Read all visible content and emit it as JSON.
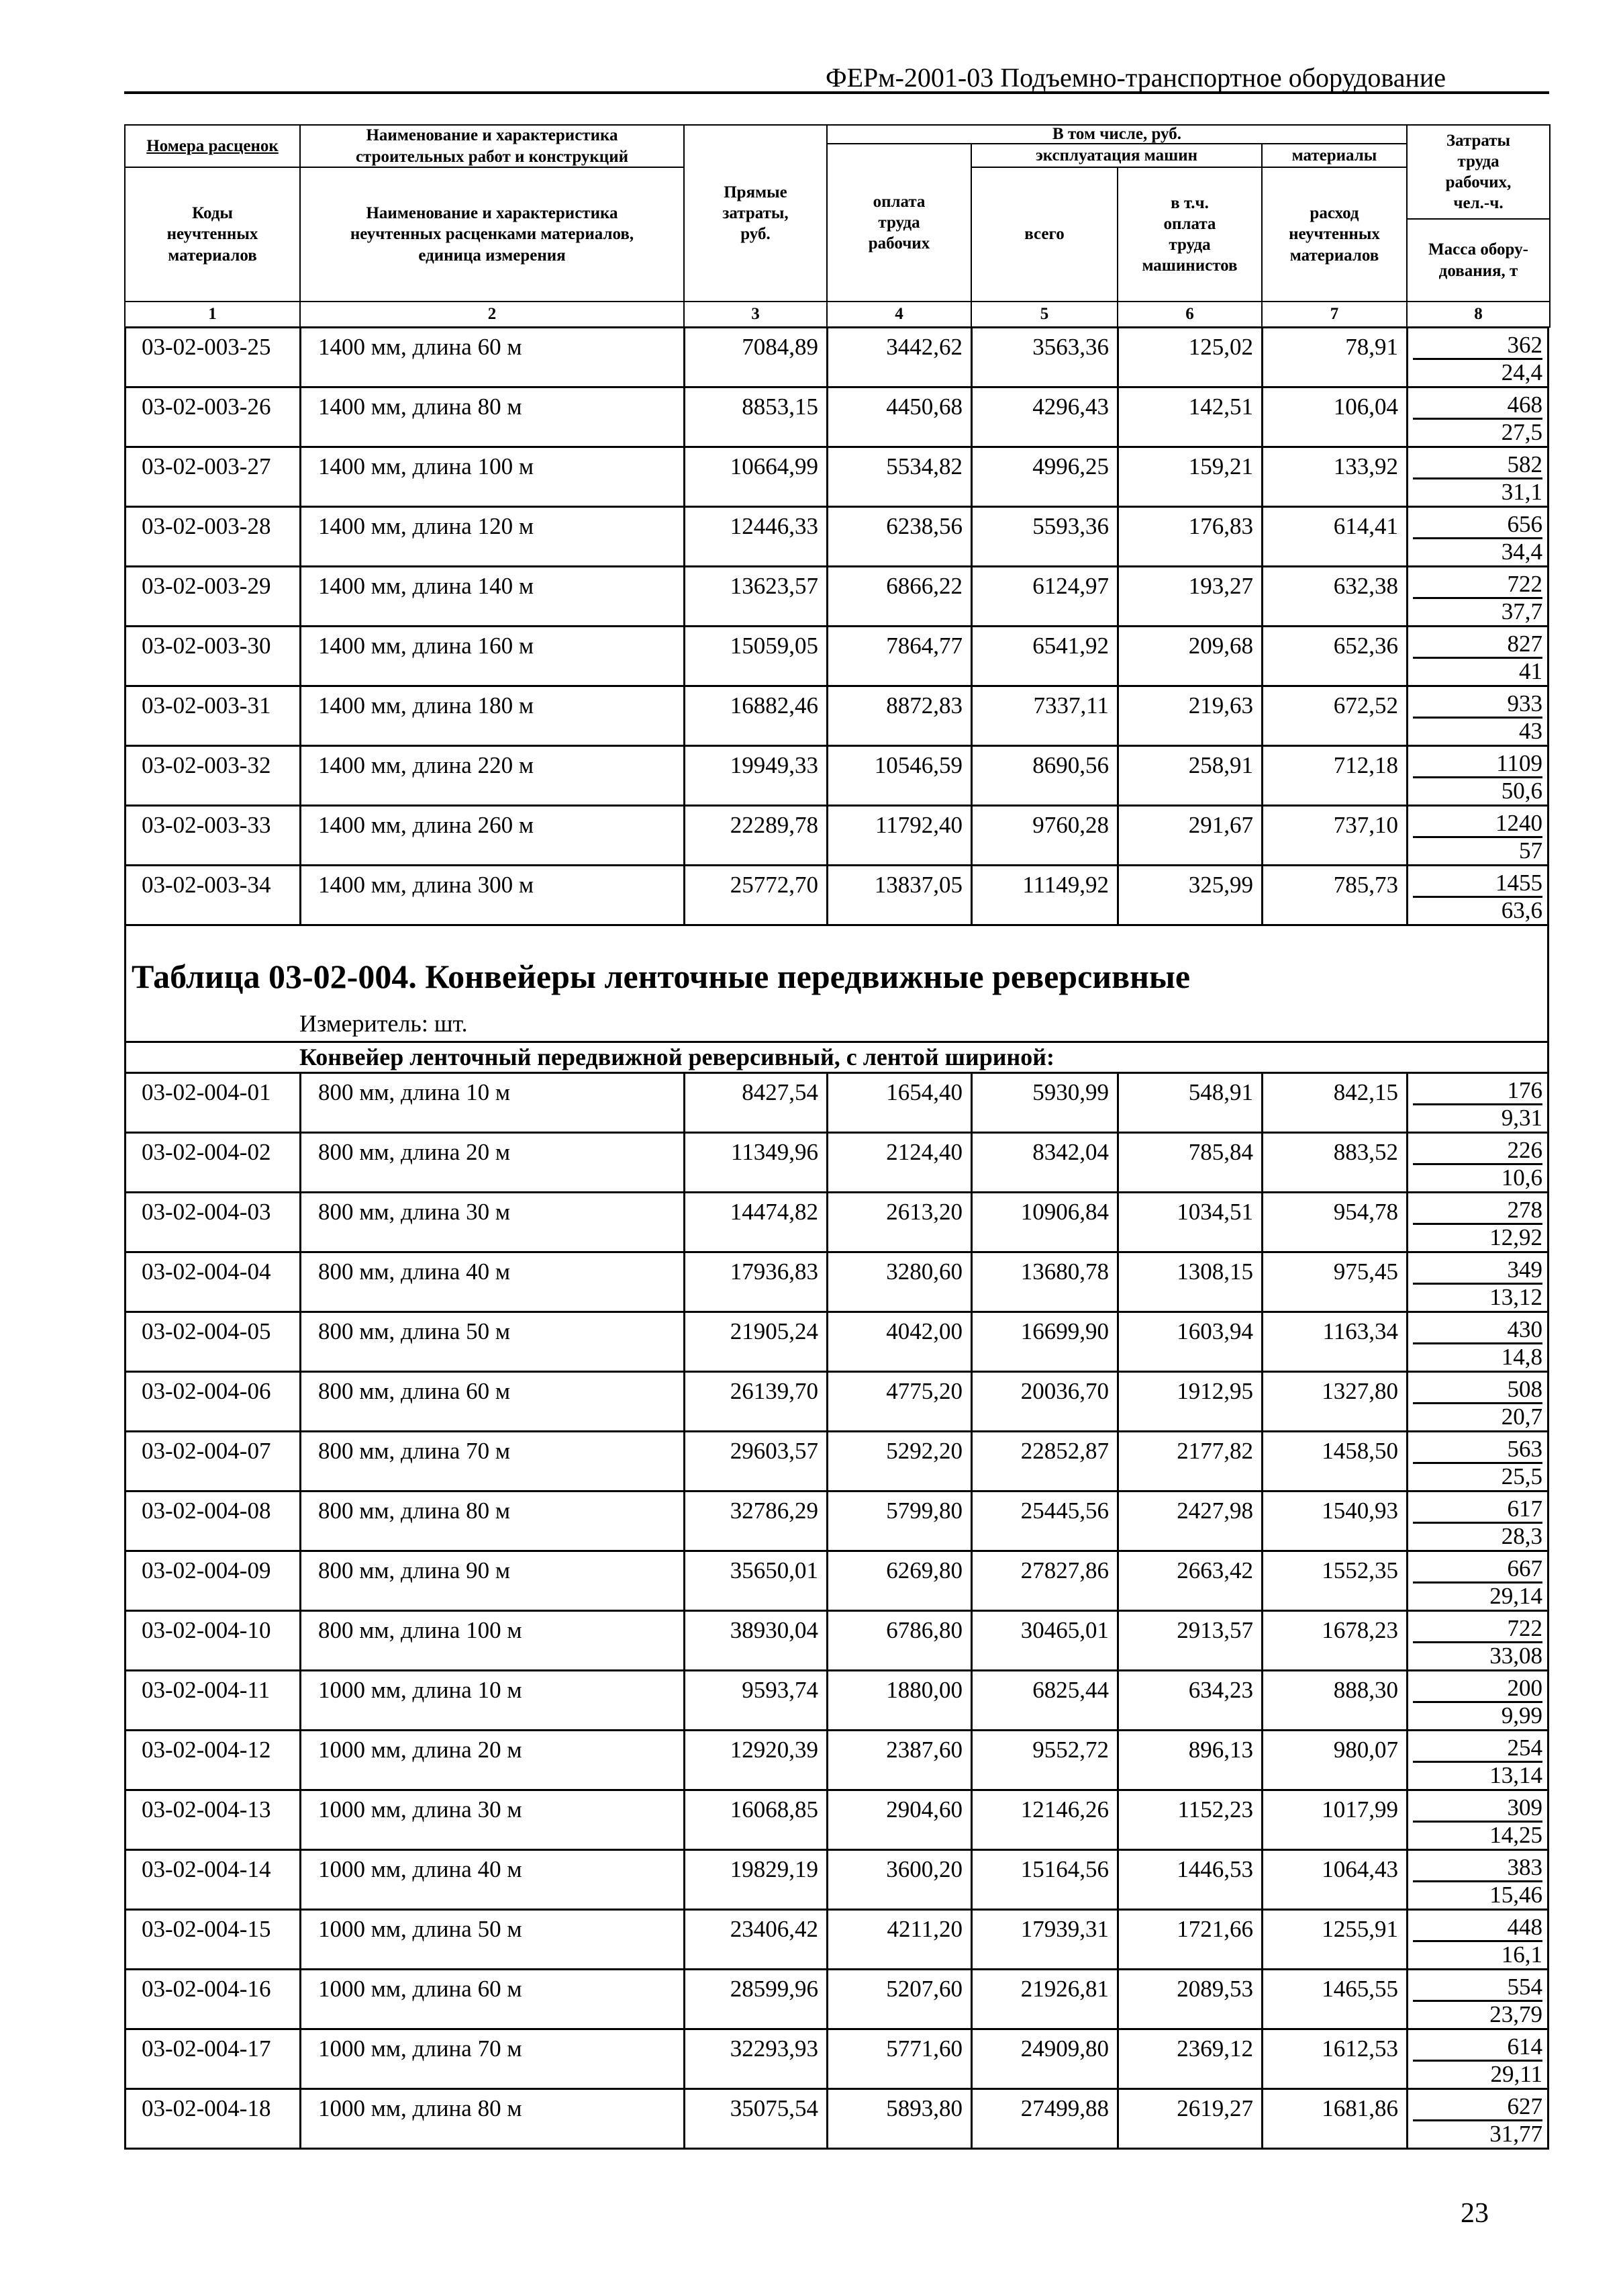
{
  "header": {
    "title": "ФЕРм-2001-03 Подъемно-транспортное оборудование"
  },
  "columns": {
    "c1_top": "Номера расценок",
    "c1_bottom": [
      "Коды",
      "неучтенных",
      "материалов"
    ],
    "c2_top": [
      "Наименование и характеристика",
      "строительных работ и конструкций"
    ],
    "c2_bottom": [
      "Наименование и характеристика",
      "неучтенных расценками материалов,",
      "единица измерения"
    ],
    "c3": [
      "Прямые",
      "затраты,",
      "руб."
    ],
    "incl": "В том числе, руб.",
    "c4": [
      "оплата",
      "труда",
      "рабочих"
    ],
    "machines": "эксплуатация машин",
    "c5": "всего",
    "c6": [
      "в т.ч.",
      "оплата",
      "труда",
      "машинистов"
    ],
    "materials": "материалы",
    "c7": [
      "расход",
      "неучтенных",
      "материалов"
    ],
    "c8_top": [
      "Затраты",
      "труда",
      "рабочих,",
      "чел.-ч."
    ],
    "c8_bottom": [
      "Масса обору-",
      "дования, т"
    ],
    "numbers": [
      "1",
      "2",
      "3",
      "4",
      "5",
      "6",
      "7",
      "8"
    ]
  },
  "table1": {
    "rows": [
      [
        "03-02-003-25",
        "1400 мм, длина 60 м",
        "7084,89",
        "3442,62",
        "3563,36",
        "125,02",
        "78,91",
        "362",
        "24,4"
      ],
      [
        "03-02-003-26",
        "1400 мм, длина 80 м",
        "8853,15",
        "4450,68",
        "4296,43",
        "142,51",
        "106,04",
        "468",
        "27,5"
      ],
      [
        "03-02-003-27",
        "1400 мм, длина 100 м",
        "10664,99",
        "5534,82",
        "4996,25",
        "159,21",
        "133,92",
        "582",
        "31,1"
      ],
      [
        "03-02-003-28",
        "1400 мм, длина 120 м",
        "12446,33",
        "6238,56",
        "5593,36",
        "176,83",
        "614,41",
        "656",
        "34,4"
      ],
      [
        "03-02-003-29",
        "1400 мм, длина 140 м",
        "13623,57",
        "6866,22",
        "6124,97",
        "193,27",
        "632,38",
        "722",
        "37,7"
      ],
      [
        "03-02-003-30",
        "1400 мм, длина 160 м",
        "15059,05",
        "7864,77",
        "6541,92",
        "209,68",
        "652,36",
        "827",
        "41"
      ],
      [
        "03-02-003-31",
        "1400 мм, длина 180 м",
        "16882,46",
        "8872,83",
        "7337,11",
        "219,63",
        "672,52",
        "933",
        "43"
      ],
      [
        "03-02-003-32",
        "1400 мм, длина 220 м",
        "19949,33",
        "10546,59",
        "8690,56",
        "258,91",
        "712,18",
        "1109",
        "50,6"
      ],
      [
        "03-02-003-33",
        "1400 мм, длина 260 м",
        "22289,78",
        "11792,40",
        "9760,28",
        "291,67",
        "737,10",
        "1240",
        "57"
      ],
      [
        "03-02-003-34",
        "1400 мм, длина 300 м",
        "25772,70",
        "13837,05",
        "11149,92",
        "325,99",
        "785,73",
        "1455",
        "63,6"
      ]
    ]
  },
  "table2": {
    "heading": "Таблица 03-02-004. Конвейеры ленточные передвижные реверсивные",
    "unit": "Измеритель: шт.",
    "group": "Конвейер ленточный передвижной реверсивный, с лентой шириной:",
    "rows": [
      [
        "03-02-004-01",
        "800 мм, длина 10 м",
        "8427,54",
        "1654,40",
        "5930,99",
        "548,91",
        "842,15",
        "176",
        "9,31"
      ],
      [
        "03-02-004-02",
        "800 мм, длина 20 м",
        "11349,96",
        "2124,40",
        "8342,04",
        "785,84",
        "883,52",
        "226",
        "10,6"
      ],
      [
        "03-02-004-03",
        "800 мм, длина 30 м",
        "14474,82",
        "2613,20",
        "10906,84",
        "1034,51",
        "954,78",
        "278",
        "12,92"
      ],
      [
        "03-02-004-04",
        "800 мм, длина 40 м",
        "17936,83",
        "3280,60",
        "13680,78",
        "1308,15",
        "975,45",
        "349",
        "13,12"
      ],
      [
        "03-02-004-05",
        "800 мм, длина 50 м",
        "21905,24",
        "4042,00",
        "16699,90",
        "1603,94",
        "1163,34",
        "430",
        "14,8"
      ],
      [
        "03-02-004-06",
        "800 мм, длина 60 м",
        "26139,70",
        "4775,20",
        "20036,70",
        "1912,95",
        "1327,80",
        "508",
        "20,7"
      ],
      [
        "03-02-004-07",
        "800 мм, длина 70 м",
        "29603,57",
        "5292,20",
        "22852,87",
        "2177,82",
        "1458,50",
        "563",
        "25,5"
      ],
      [
        "03-02-004-08",
        "800 мм, длина 80 м",
        "32786,29",
        "5799,80",
        "25445,56",
        "2427,98",
        "1540,93",
        "617",
        "28,3"
      ],
      [
        "03-02-004-09",
        "800 мм, длина 90 м",
        "35650,01",
        "6269,80",
        "27827,86",
        "2663,42",
        "1552,35",
        "667",
        "29,14"
      ],
      [
        "03-02-004-10",
        "800 мм, длина 100 м",
        "38930,04",
        "6786,80",
        "30465,01",
        "2913,57",
        "1678,23",
        "722",
        "33,08"
      ],
      [
        "03-02-004-11",
        "1000 мм, длина 10 м",
        "9593,74",
        "1880,00",
        "6825,44",
        "634,23",
        "888,30",
        "200",
        "9,99"
      ],
      [
        "03-02-004-12",
        "1000 мм, длина 20 м",
        "12920,39",
        "2387,60",
        "9552,72",
        "896,13",
        "980,07",
        "254",
        "13,14"
      ],
      [
        "03-02-004-13",
        "1000 мм, длина 30 м",
        "16068,85",
        "2904,60",
        "12146,26",
        "1152,23",
        "1017,99",
        "309",
        "14,25"
      ],
      [
        "03-02-004-14",
        "1000 мм, длина 40 м",
        "19829,19",
        "3600,20",
        "15164,56",
        "1446,53",
        "1064,43",
        "383",
        "15,46"
      ],
      [
        "03-02-004-15",
        "1000 мм, длина 50 м",
        "23406,42",
        "4211,20",
        "17939,31",
        "1721,66",
        "1255,91",
        "448",
        "16,1"
      ],
      [
        "03-02-004-16",
        "1000 мм, длина 60 м",
        "28599,96",
        "5207,60",
        "21926,81",
        "2089,53",
        "1465,55",
        "554",
        "23,79"
      ],
      [
        "03-02-004-17",
        "1000 мм, длина 70 м",
        "32293,93",
        "5771,60",
        "24909,80",
        "2369,12",
        "1612,53",
        "614",
        "29,11"
      ],
      [
        "03-02-004-18",
        "1000 мм, длина 80 м",
        "35075,54",
        "5893,80",
        "27499,88",
        "2619,27",
        "1681,86",
        "627",
        "31,77"
      ]
    ]
  },
  "footer": {
    "page_number": "23"
  }
}
